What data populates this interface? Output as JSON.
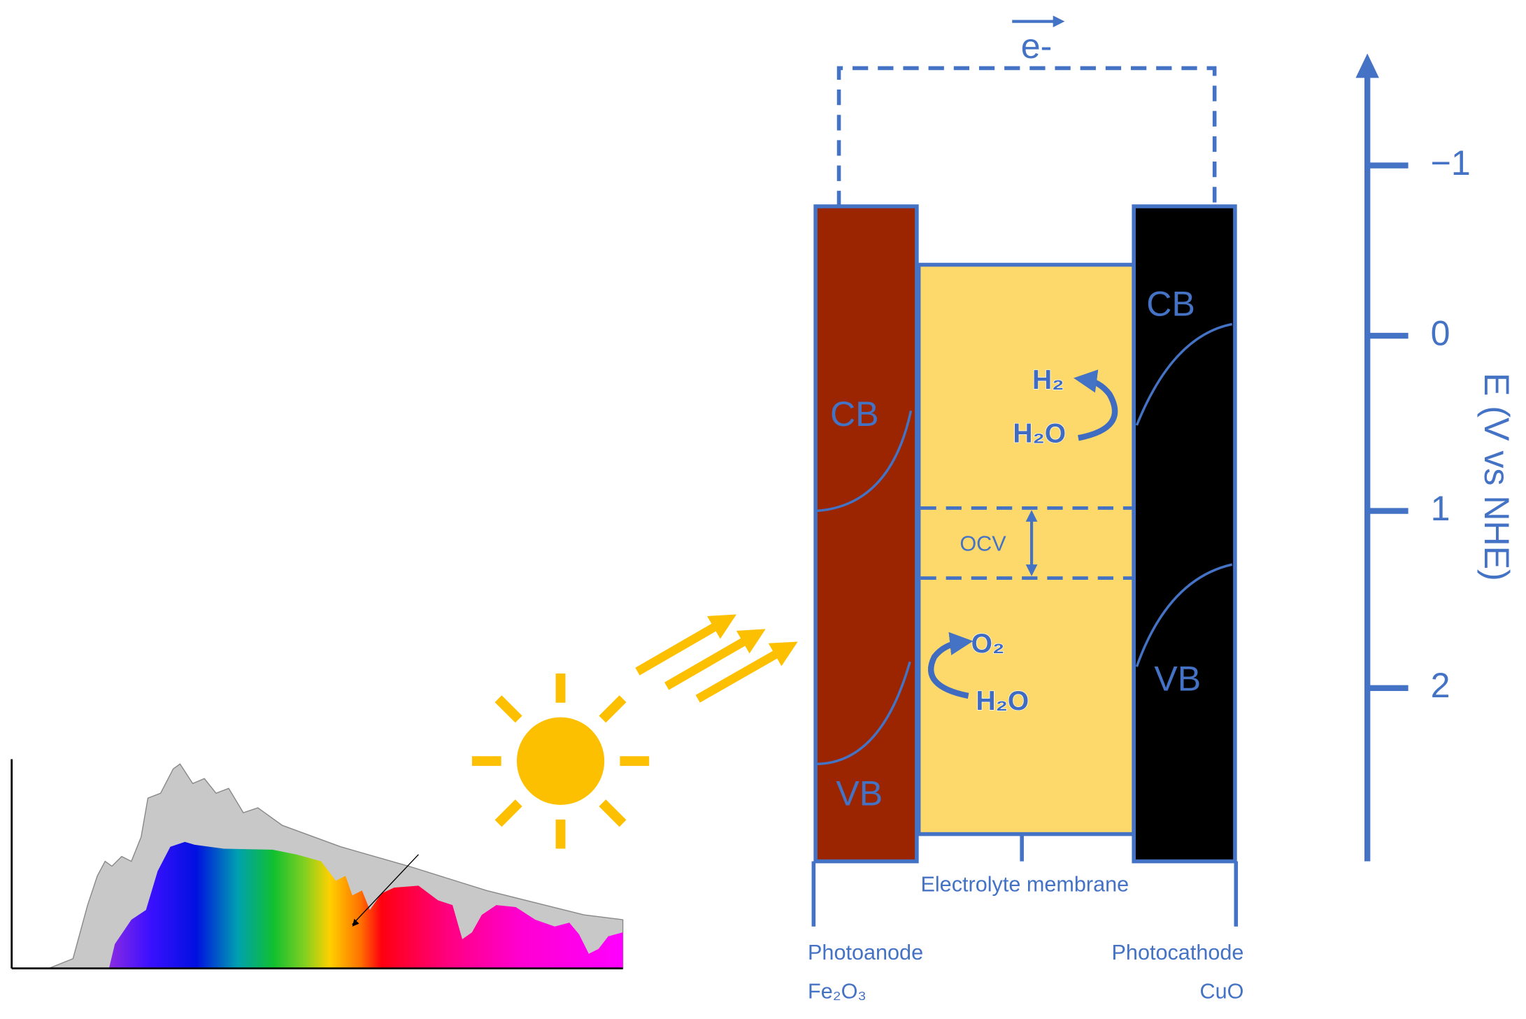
{
  "circuit": {
    "electron": "e-"
  },
  "axis": {
    "label": "E (V vs NHE)",
    "ticks": [
      "−1",
      "0",
      "1",
      "2"
    ]
  },
  "photoanode": {
    "cb": "CB",
    "vb": "VB",
    "name": "Photoanode",
    "material": "Fe₂O₃"
  },
  "photocathode": {
    "cb": "CB",
    "vb": "VB",
    "name": "Photocathode",
    "material": "CuO"
  },
  "electrolyte": {
    "ocv": "OCV",
    "membrane": "Electrolyte membrane",
    "cathode_reaction": {
      "product": "H₂",
      "reactant": "H₂O"
    },
    "anode_reaction": {
      "product": "O₂",
      "reactant": "H₂O"
    }
  }
}
